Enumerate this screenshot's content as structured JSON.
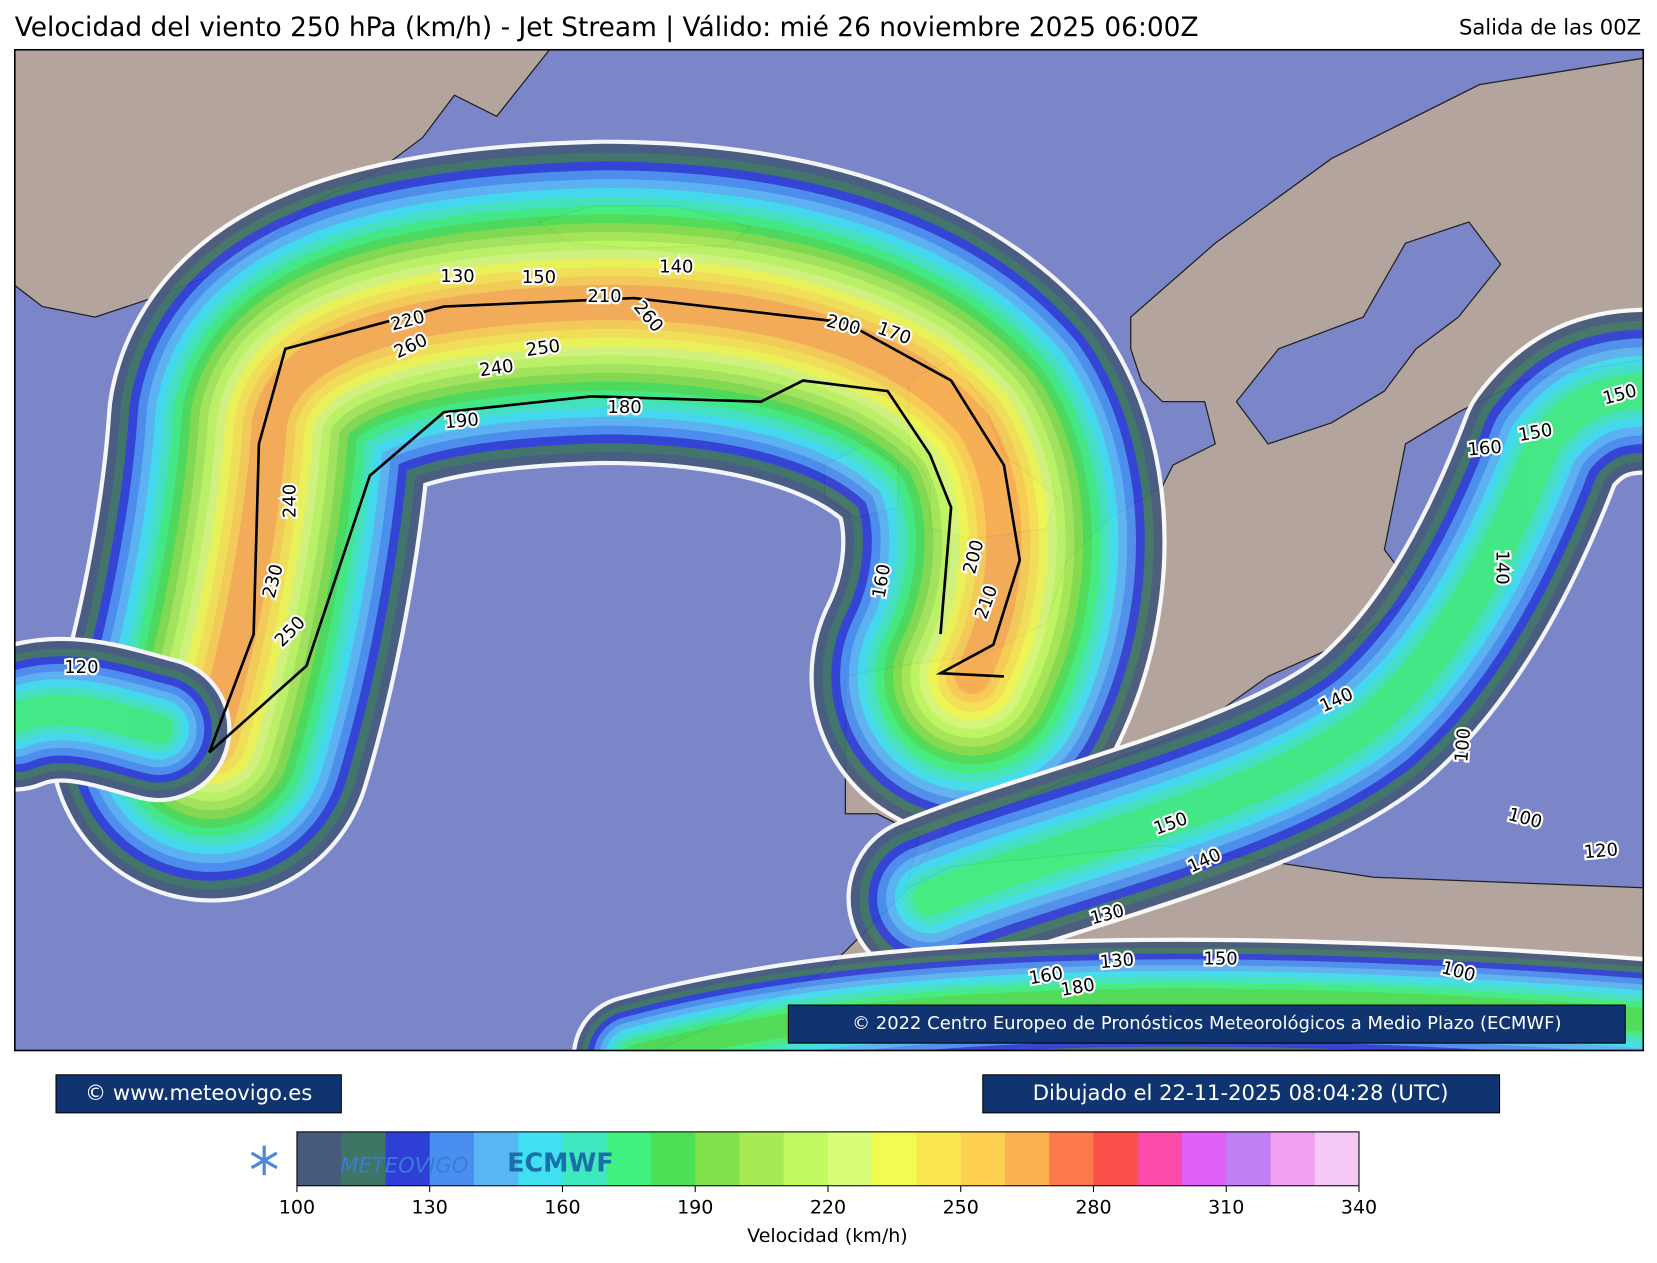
{
  "header": {
    "title": "Velocidad del viento 250 hPa (km/h) - Jet Stream | Válido: mié 26 noviembre 2025 06:00Z",
    "subtitle": "Salida de las 00Z"
  },
  "map": {
    "contour_labels": [
      130,
      150,
      140,
      210,
      260,
      220,
      260,
      250,
      240,
      200,
      170,
      190,
      180,
      240,
      230,
      250,
      120,
      160,
      200,
      210,
      150,
      160,
      150,
      140,
      140,
      100,
      100,
      120,
      150,
      140,
      130,
      130,
      150,
      160,
      180,
      100
    ],
    "attribution": "© 2022 Centro Europeo de Pronósticos Meteorológicos a Medio Plazo (ECMWF)"
  },
  "footer": {
    "website": "© www.meteovigo.es",
    "drawn": "Dibujado el 22-11-2025 08:04:28 (UTC)",
    "logos": [
      "METEOVIGO",
      "ECMWF"
    ]
  },
  "colorbar": {
    "label": "Velocidad (km/h)",
    "range": [
      100,
      340
    ],
    "ticks": [
      100,
      130,
      160,
      190,
      220,
      250,
      280,
      310,
      340
    ],
    "colors": [
      "#465a7c",
      "#3e7565",
      "#2e3fd6",
      "#4a8ff0",
      "#5ab5f5",
      "#40e0f0",
      "#40e8c0",
      "#40f080",
      "#4be055",
      "#82e04a",
      "#a6ea55",
      "#c0fa60",
      "#d8fb78",
      "#f2fb50",
      "#fae650",
      "#fdd050",
      "#fdb050",
      "#fd7a4a",
      "#fb504a",
      "#fc4aaa",
      "#e060fa",
      "#c080f5",
      "#f0a0f0",
      "#f5c8f5"
    ]
  }
}
